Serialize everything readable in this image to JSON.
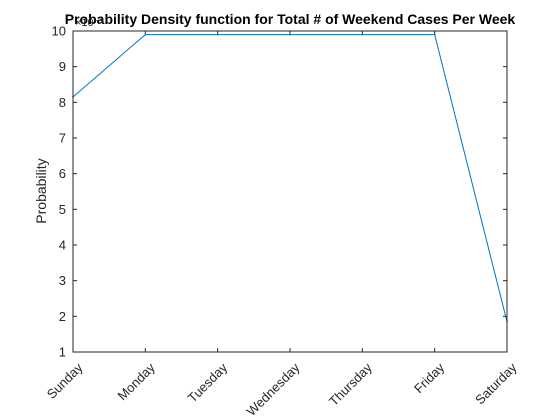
{
  "chart_data": {
    "type": "line",
    "title": "Probability Density function for Total # of Weekend Cases Per Week",
    "xlabel": "",
    "ylabel": "Probability",
    "y_exponent_label": "×10⁻³",
    "categories": [
      "Sunday",
      "Monday",
      "Tuesday",
      "Wednesday",
      "Thursday",
      "Friday",
      "Saturday"
    ],
    "y_scale_factor": 0.001,
    "series": [
      {
        "values": [
          8.15,
          9.9,
          9.9,
          9.9,
          9.9,
          9.9,
          1.85
        ],
        "color": "#0072BD"
      }
    ],
    "ylim": [
      1,
      10
    ],
    "yticks": [
      1,
      2,
      3,
      4,
      5,
      6,
      7,
      8,
      9,
      10
    ],
    "grid": false,
    "box": true,
    "axis_color": "#262626",
    "background": "#ffffff"
  }
}
